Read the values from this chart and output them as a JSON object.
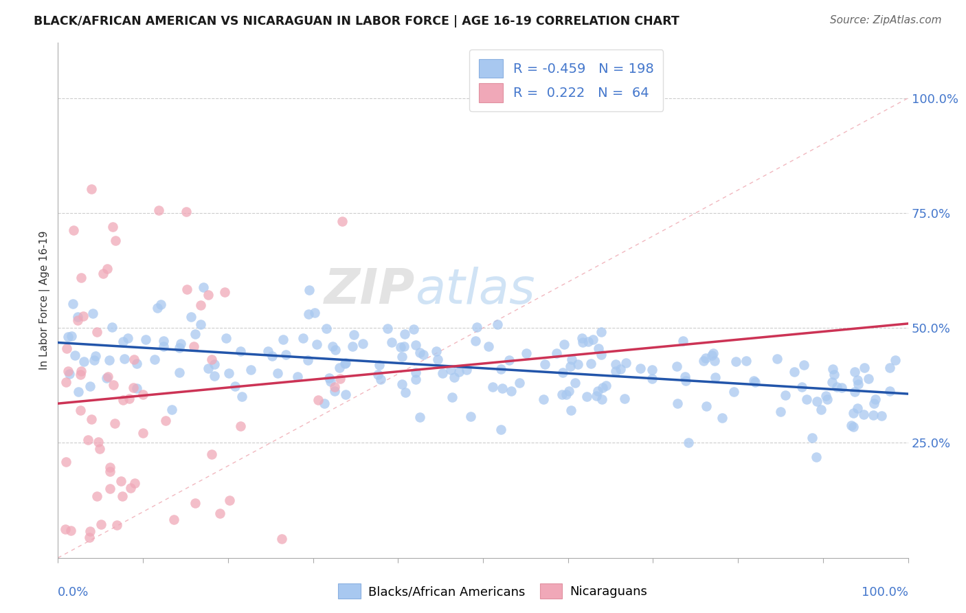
{
  "title": "BLACK/AFRICAN AMERICAN VS NICARAGUAN IN LABOR FORCE | AGE 16-19 CORRELATION CHART",
  "source": "Source: ZipAtlas.com",
  "ylabel": "In Labor Force | Age 16-19",
  "ytick_values": [
    0.25,
    0.5,
    0.75,
    1.0
  ],
  "xlim": [
    0.0,
    1.0
  ],
  "ylim": [
    0.0,
    1.1
  ],
  "legend": {
    "blue_r": "-0.459",
    "blue_n": "198",
    "pink_r": "0.222",
    "pink_n": "64"
  },
  "blue_color": "#a8c8f0",
  "pink_color": "#f0a8b8",
  "blue_line_color": "#2255aa",
  "pink_line_color": "#cc3355",
  "diag_line_color": "#f0b0b8",
  "watermark_zip": "ZIP",
  "watermark_atlas": "atlas",
  "blue_seed": 12,
  "pink_seed": 77
}
